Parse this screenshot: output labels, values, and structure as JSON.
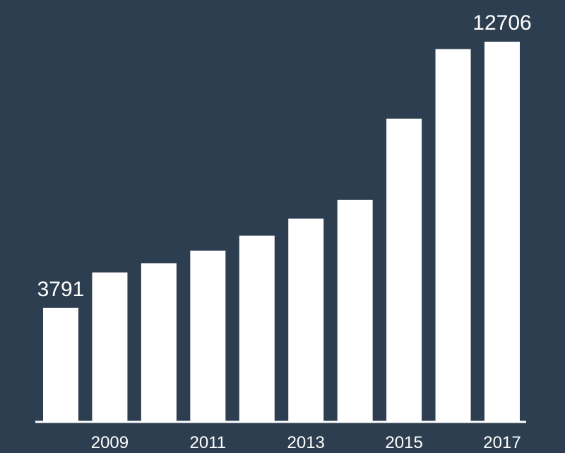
{
  "chart_data": {
    "type": "bar",
    "categories": [
      null,
      "2009",
      null,
      "2011",
      null,
      "2013",
      null,
      "2015",
      null,
      "2017"
    ],
    "values": [
      3791,
      4980,
      5290,
      5710,
      6210,
      6780,
      7410,
      10130,
      12460,
      12706
    ],
    "color": "#ffffff",
    "labeled_values": [
      0,
      9
    ]
  }
}
